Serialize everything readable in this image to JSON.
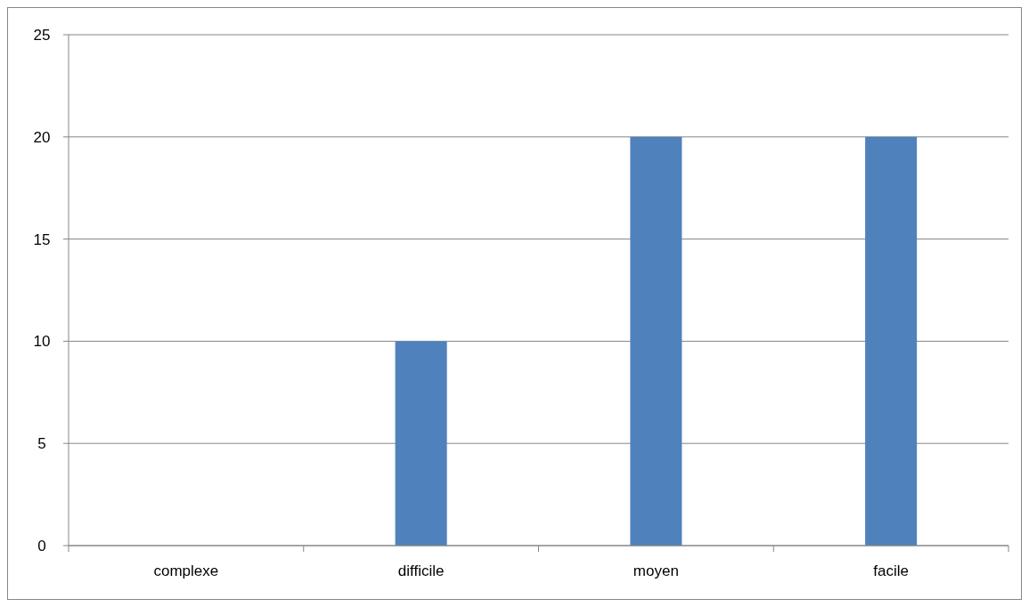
{
  "chart_data": {
    "type": "bar",
    "categories": [
      "complexe",
      "difficile",
      "moyen",
      "facile"
    ],
    "values": [
      0,
      10,
      20,
      20
    ],
    "color": "#4f81bd",
    "ylim": [
      0,
      25
    ],
    "yticks": [
      0,
      5,
      10,
      15,
      20,
      25
    ],
    "grid": "y"
  }
}
